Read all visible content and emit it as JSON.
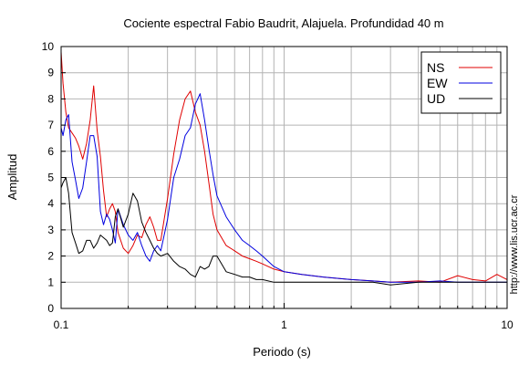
{
  "chart_data": {
    "type": "line",
    "title": "Cociente espectral Fabio Baudrit, Alajuela. Profundidad 40 m",
    "xlabel": "Periodo (s)",
    "ylabel": "Amplitud",
    "side_text": "http://www.lis.ucr.ac.cr",
    "xscale": "log",
    "xlim": [
      0.1,
      10
    ],
    "ylim": [
      0,
      10
    ],
    "xticks": [
      0.1,
      1,
      10
    ],
    "xtick_labels": [
      "0.1",
      "1",
      "10"
    ],
    "yticks": [
      0,
      1,
      2,
      3,
      4,
      5,
      6,
      7,
      8,
      9,
      10
    ],
    "ytick_labels": [
      "0",
      "1",
      "2",
      "3",
      "4",
      "5",
      "6",
      "7",
      "8",
      "9",
      "10"
    ],
    "grid": true,
    "legend_position": "top-right",
    "series": [
      {
        "name": "NS",
        "color": "#e00000",
        "x": [
          0.1,
          0.102,
          0.105,
          0.108,
          0.112,
          0.116,
          0.12,
          0.125,
          0.13,
          0.135,
          0.14,
          0.145,
          0.15,
          0.155,
          0.16,
          0.165,
          0.17,
          0.175,
          0.18,
          0.19,
          0.2,
          0.21,
          0.22,
          0.23,
          0.24,
          0.25,
          0.26,
          0.27,
          0.28,
          0.3,
          0.32,
          0.34,
          0.36,
          0.38,
          0.4,
          0.42,
          0.44,
          0.46,
          0.48,
          0.5,
          0.55,
          0.6,
          0.65,
          0.7,
          0.75,
          0.8,
          0.9,
          1.0,
          1.2,
          1.5,
          2.0,
          2.5,
          3.0,
          4.0,
          5.0,
          6.0,
          7.0,
          8.0,
          9.0,
          10.0
        ],
        "y": [
          9.8,
          8.6,
          7.5,
          6.9,
          6.7,
          6.5,
          6.2,
          5.7,
          6.3,
          7.2,
          8.5,
          6.8,
          5.8,
          4.5,
          3.5,
          3.8,
          4.0,
          3.7,
          2.9,
          2.3,
          2.1,
          2.4,
          2.8,
          2.7,
          3.2,
          3.5,
          3.1,
          2.6,
          2.6,
          4.2,
          5.9,
          7.2,
          8.0,
          8.3,
          7.5,
          7.0,
          6.0,
          4.8,
          3.6,
          3.0,
          2.4,
          2.2,
          2.0,
          1.9,
          1.8,
          1.7,
          1.5,
          1.4,
          1.3,
          1.2,
          1.1,
          1.05,
          1.0,
          1.05,
          1.0,
          1.25,
          1.1,
          1.05,
          1.3,
          1.1
        ]
      },
      {
        "name": "EW",
        "color": "#0000e0",
        "x": [
          0.1,
          0.102,
          0.105,
          0.108,
          0.112,
          0.116,
          0.12,
          0.125,
          0.13,
          0.135,
          0.14,
          0.145,
          0.15,
          0.155,
          0.16,
          0.165,
          0.17,
          0.175,
          0.18,
          0.19,
          0.2,
          0.21,
          0.22,
          0.23,
          0.24,
          0.25,
          0.26,
          0.27,
          0.28,
          0.3,
          0.32,
          0.34,
          0.36,
          0.38,
          0.4,
          0.42,
          0.44,
          0.46,
          0.48,
          0.5,
          0.55,
          0.6,
          0.65,
          0.7,
          0.75,
          0.8,
          0.9,
          1.0,
          1.2,
          1.5,
          2.0,
          2.5,
          3.0,
          4.0,
          5.0,
          6.0,
          7.0,
          8.0,
          9.0,
          10.0
        ],
        "y": [
          6.9,
          6.6,
          7.2,
          7.4,
          5.6,
          4.9,
          4.2,
          4.6,
          5.6,
          6.6,
          6.6,
          5.8,
          3.7,
          3.2,
          3.6,
          3.4,
          3.0,
          2.5,
          3.8,
          3.2,
          2.8,
          2.6,
          2.9,
          2.4,
          2.0,
          1.8,
          2.2,
          2.4,
          2.2,
          3.4,
          5.0,
          5.7,
          6.6,
          6.9,
          7.8,
          8.2,
          7.2,
          6.1,
          5.1,
          4.3,
          3.5,
          3.0,
          2.6,
          2.4,
          2.2,
          2.0,
          1.6,
          1.4,
          1.3,
          1.2,
          1.1,
          1.05,
          1.0,
          1.0,
          1.05,
          1.0,
          1.0,
          1.0,
          1.0,
          1.0
        ]
      },
      {
        "name": "UD",
        "color": "#000000",
        "x": [
          0.1,
          0.102,
          0.105,
          0.108,
          0.112,
          0.116,
          0.12,
          0.125,
          0.13,
          0.135,
          0.14,
          0.145,
          0.15,
          0.155,
          0.16,
          0.165,
          0.17,
          0.175,
          0.18,
          0.19,
          0.2,
          0.21,
          0.22,
          0.23,
          0.24,
          0.25,
          0.26,
          0.27,
          0.28,
          0.3,
          0.32,
          0.34,
          0.36,
          0.38,
          0.4,
          0.42,
          0.44,
          0.46,
          0.48,
          0.5,
          0.55,
          0.6,
          0.65,
          0.7,
          0.75,
          0.8,
          0.9,
          1.0,
          1.2,
          1.5,
          2.0,
          2.5,
          3.0,
          4.0,
          5.0,
          6.0,
          7.0,
          8.0,
          9.0,
          10.0
        ],
        "y": [
          4.6,
          4.8,
          5.0,
          4.4,
          2.9,
          2.5,
          2.1,
          2.2,
          2.6,
          2.6,
          2.3,
          2.5,
          2.8,
          2.7,
          2.6,
          2.4,
          2.5,
          3.5,
          3.8,
          3.1,
          3.6,
          4.4,
          4.1,
          3.3,
          2.9,
          2.6,
          2.3,
          2.1,
          2.0,
          2.1,
          1.8,
          1.6,
          1.5,
          1.3,
          1.2,
          1.6,
          1.5,
          1.6,
          2.0,
          2.0,
          1.4,
          1.3,
          1.2,
          1.2,
          1.1,
          1.1,
          1.0,
          1.0,
          1.0,
          1.0,
          1.0,
          1.0,
          0.9,
          1.0,
          1.0,
          1.0,
          1.0,
          1.0,
          1.0,
          1.0
        ]
      }
    ]
  }
}
